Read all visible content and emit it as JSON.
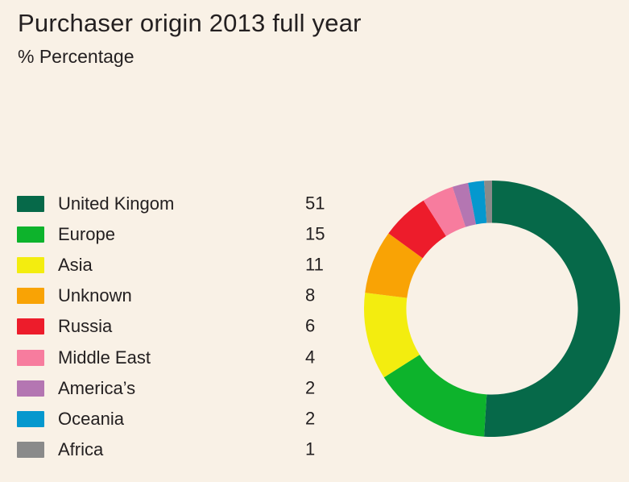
{
  "theme": {
    "background": "#F9F1E6",
    "text_color": "#242021"
  },
  "header": {
    "title": "Purchaser origin 2013 full year",
    "subtitle": "% Percentage"
  },
  "chart_data": {
    "type": "pie",
    "subtype": "donut",
    "title": "Purchaser origin 2013 full year",
    "value_unit": "% Percentage",
    "direction": "clockwise",
    "start_angle": "12 o'clock",
    "inner_radius_ratio": 0.67,
    "legend_position": "left",
    "categories": [
      "United Kingom",
      "Europe",
      "Asia",
      "Unknown",
      "Russia",
      "Middle East",
      "America’s",
      "Oceania",
      "Africa"
    ],
    "values": [
      51,
      15,
      11,
      8,
      6,
      4,
      2,
      2,
      1
    ],
    "colors": [
      "#066949",
      "#0DB32C",
      "#F3ED0F",
      "#F9A305",
      "#ED1C2B",
      "#F77C9E",
      "#B476B2",
      "#0598CE",
      "#8A8A8A"
    ]
  }
}
